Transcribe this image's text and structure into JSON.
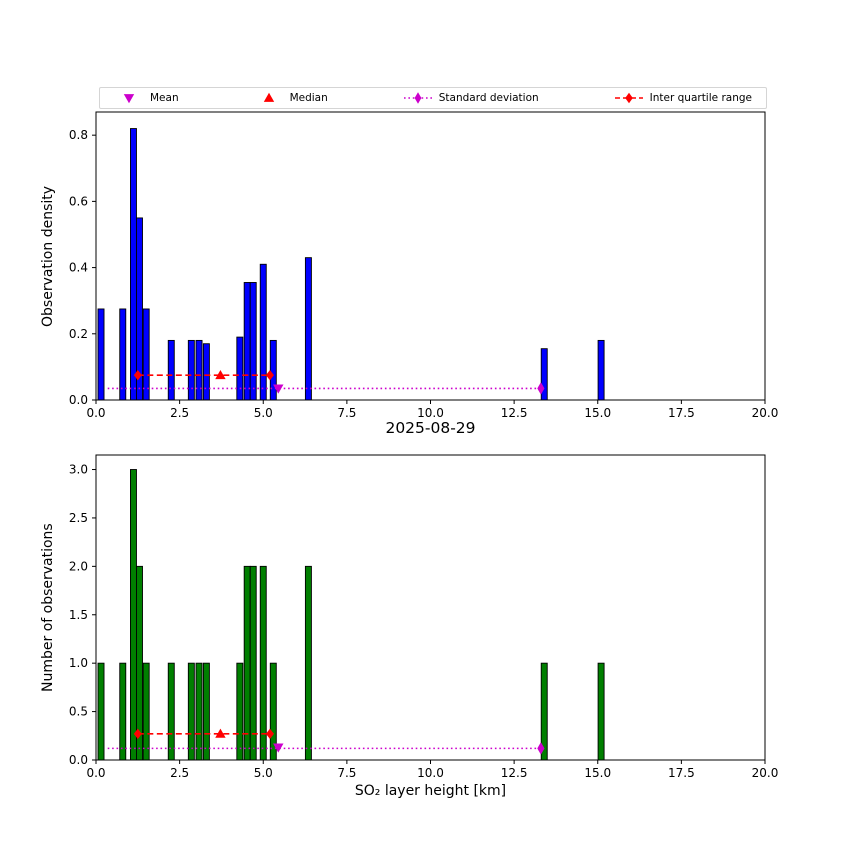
{
  "figure": {
    "background": "#ffffff"
  },
  "legend": {
    "items": [
      {
        "label": "Mean",
        "marker": "triangle-down",
        "color": "#cc00cc"
      },
      {
        "label": "Median",
        "marker": "triangle-up",
        "color": "#ff0000"
      },
      {
        "label": "Standard deviation",
        "marker": "diamond-dotted-line",
        "color": "#cc00cc"
      },
      {
        "label": "Inter quartile range",
        "marker": "diamond-dashed-line",
        "color": "#ff0000"
      }
    ]
  },
  "chart_data": [
    {
      "type": "bar",
      "title": "",
      "ylabel": "Observation density",
      "xlabel": "",
      "xlim": [
        0,
        20
      ],
      "ylim": [
        0,
        0.87
      ],
      "xticks": [
        "0.0",
        "2.5",
        "5.0",
        "7.5",
        "10.0",
        "12.5",
        "15.0",
        "17.5",
        "20.0"
      ],
      "yticks": [
        "0.0",
        "0.2",
        "0.4",
        "0.6",
        "0.8"
      ],
      "bar_color": "#0000ff",
      "bar_edge": "#000000",
      "bar_width": 0.18,
      "bars": [
        [
          0.15,
          0.275
        ],
        [
          0.8,
          0.275
        ],
        [
          1.12,
          0.82
        ],
        [
          1.3,
          0.55
        ],
        [
          1.5,
          0.275
        ],
        [
          2.25,
          0.18
        ],
        [
          2.85,
          0.18
        ],
        [
          3.08,
          0.18
        ],
        [
          3.3,
          0.17
        ],
        [
          4.3,
          0.19
        ],
        [
          4.52,
          0.355
        ],
        [
          4.7,
          0.355
        ],
        [
          5.0,
          0.41
        ],
        [
          5.3,
          0.18
        ],
        [
          6.35,
          0.43
        ],
        [
          13.4,
          0.155
        ],
        [
          15.1,
          0.18
        ]
      ],
      "stats": {
        "mean": {
          "x": 5.45,
          "y": 0.035
        },
        "median": {
          "x": 3.72,
          "y": 0.075
        },
        "std": {
          "x1": 0.35,
          "x2": 13.3,
          "y": 0.035
        },
        "iqr": {
          "x1": 1.25,
          "x2": 5.2,
          "y": 0.075
        }
      }
    },
    {
      "type": "bar",
      "title": "2025-08-29",
      "ylabel": "Number of observations",
      "xlabel": "SO₂ layer height [km]",
      "xlim": [
        0,
        20
      ],
      "ylim": [
        0,
        3.15
      ],
      "xticks": [
        "0.0",
        "2.5",
        "5.0",
        "7.5",
        "10.0",
        "12.5",
        "15.0",
        "17.5",
        "20.0"
      ],
      "yticks": [
        "0.0",
        "0.5",
        "1.0",
        "1.5",
        "2.0",
        "2.5",
        "3.0"
      ],
      "bar_color": "#007f00",
      "bar_edge": "#000000",
      "bar_width": 0.18,
      "bars": [
        [
          0.15,
          1
        ],
        [
          0.8,
          1
        ],
        [
          1.12,
          3
        ],
        [
          1.3,
          2
        ],
        [
          1.5,
          1
        ],
        [
          2.25,
          1
        ],
        [
          2.85,
          1
        ],
        [
          3.08,
          1
        ],
        [
          3.3,
          1
        ],
        [
          4.3,
          1
        ],
        [
          4.52,
          2
        ],
        [
          4.7,
          2
        ],
        [
          5.0,
          2
        ],
        [
          5.3,
          1
        ],
        [
          6.35,
          2
        ],
        [
          13.4,
          1
        ],
        [
          15.1,
          1
        ]
      ],
      "stats": {
        "mean": {
          "x": 5.45,
          "y": 0.13
        },
        "median": {
          "x": 3.72,
          "y": 0.27
        },
        "std": {
          "x1": 0.35,
          "x2": 13.3,
          "y": 0.12
        },
        "iqr": {
          "x1": 1.25,
          "x2": 5.2,
          "y": 0.27
        }
      }
    }
  ]
}
